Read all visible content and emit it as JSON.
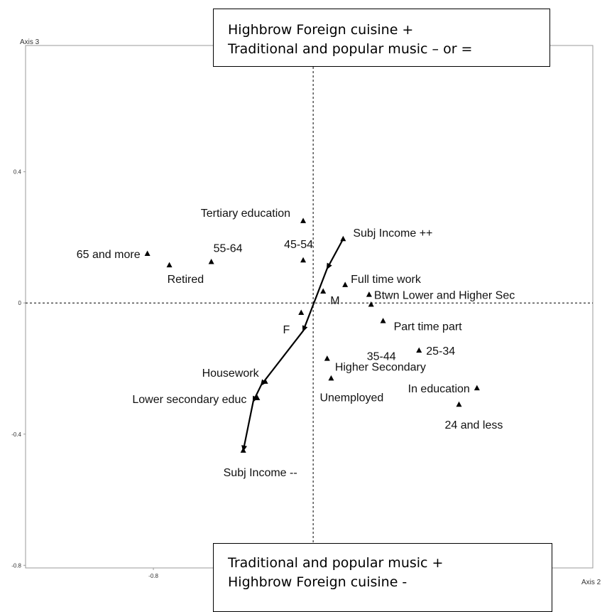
{
  "chart_data": {
    "type": "scatter",
    "xlabel": "Axis 2",
    "ylabel": "Axis 3",
    "x_ticks": [
      -0.8
    ],
    "y_ticks": [
      0.4,
      0,
      -0.4,
      -0.8
    ],
    "xlim": [
      -1.44,
      1.4
    ],
    "ylim": [
      -0.808,
      0.785
    ],
    "grid": false,
    "reference_lines": {
      "x": 0,
      "y": 0
    },
    "points": [
      {
        "label": "Tertiary education",
        "x": -0.05,
        "y": 0.25
      },
      {
        "label": "45-54",
        "x": -0.05,
        "y": 0.13
      },
      {
        "label": "55-64",
        "x": -0.51,
        "y": 0.125
      },
      {
        "label": "Retired",
        "x": -0.72,
        "y": 0.115
      },
      {
        "label": "65 and more",
        "x": -0.83,
        "y": 0.15
      },
      {
        "label": "Full time work",
        "x": 0.16,
        "y": 0.055
      },
      {
        "label": "M",
        "x": 0.05,
        "y": 0.035
      },
      {
        "label": "Btwn Lower and Higher Sec",
        "x": 0.28,
        "y": 0.025
      },
      {
        "label": "Part time part",
        "x": 0.35,
        "y": -0.055
      },
      {
        "label": "F",
        "x": -0.06,
        "y": -0.03
      },
      {
        "label": "35-44",
        "x": 0.29,
        "y": -0.005
      },
      {
        "label": "25-34",
        "x": 0.53,
        "y": -0.145
      },
      {
        "label": "Higher Secondary",
        "x": 0.07,
        "y": -0.17
      },
      {
        "label": "Unemployed",
        "x": 0.09,
        "y": -0.23
      },
      {
        "label": "In education",
        "x": 0.82,
        "y": -0.26
      },
      {
        "label": "24 and less",
        "x": 0.73,
        "y": -0.31
      },
      {
        "label": "Housework",
        "x": -0.24,
        "y": -0.24
      },
      {
        "label": "Lower secondary educ",
        "x": -0.28,
        "y": -0.29
      }
    ],
    "trajectory": {
      "start_label": "Subj Income ++",
      "end_label": "Subj Income --",
      "points": [
        [
          0.15,
          0.195
        ],
        [
          0.07,
          0.105
        ],
        [
          -0.05,
          -0.085
        ],
        [
          -0.26,
          -0.25
        ],
        [
          -0.3,
          -0.3
        ],
        [
          -0.35,
          -0.45
        ]
      ]
    },
    "annotations": {
      "top": [
        "Highbrow Foreign cuisine +",
        "Traditional and popular music – or ="
      ],
      "bottom": [
        "Traditional and popular music +",
        "Highbrow Foreign cuisine -"
      ]
    }
  }
}
